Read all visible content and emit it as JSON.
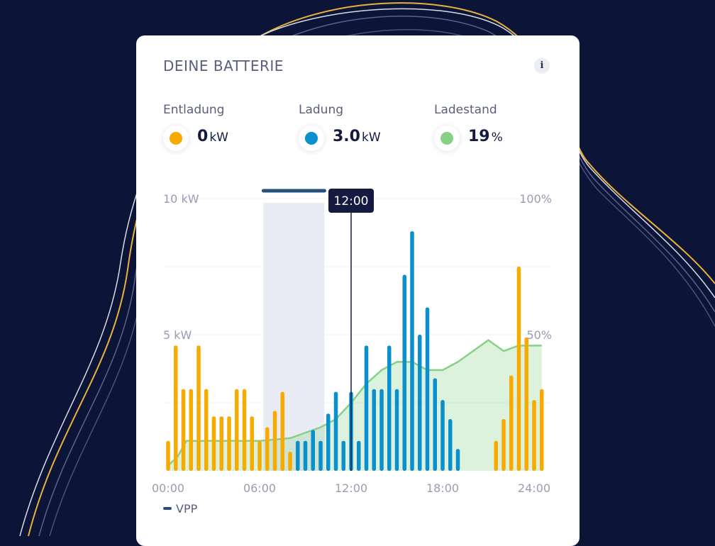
{
  "card": {
    "title": "DEINE BATTERIE",
    "info_icon": "i"
  },
  "stats": [
    {
      "label": "Entladung",
      "value": "0",
      "unit": "kW",
      "color": "#f7aa00"
    },
    {
      "label": "Ladung",
      "value": "3.0",
      "unit": "kW",
      "color": "#0a8fcf"
    },
    {
      "label": "Ladestand",
      "value": "19",
      "unit": "%",
      "color": "#86d186"
    }
  ],
  "legend": {
    "vpp_label": "VPP",
    "vpp_color": "#25517d"
  },
  "chart_data": {
    "type": "bar",
    "x_ticks": [
      "00:00",
      "06:00",
      "12:00",
      "18:00",
      "24:00"
    ],
    "y_left_ticks": [
      "10 kW",
      "5 kW"
    ],
    "y_right_ticks": [
      "100%",
      "50%"
    ],
    "ylim_left": [
      0,
      10
    ],
    "ylim_right": [
      0,
      100
    ],
    "cursor": {
      "label": "12:00",
      "hour": 12.0
    },
    "vpp_window": [
      6.25,
      10.25
    ],
    "colors": {
      "entladung": "#f7aa00",
      "ladung": "#0a8fcf",
      "ladestand": "#86d186"
    },
    "series": [
      {
        "name": "Entladung",
        "points": [
          [
            0.0,
            1.1
          ],
          [
            0.5,
            4.6
          ],
          [
            1.0,
            3.0
          ],
          [
            1.5,
            3.0
          ],
          [
            2.0,
            4.6
          ],
          [
            2.5,
            3.0
          ],
          [
            3.0,
            2.0
          ],
          [
            3.5,
            2.0
          ],
          [
            4.0,
            2.0
          ],
          [
            4.5,
            3.0
          ],
          [
            5.0,
            3.0
          ],
          [
            5.5,
            2.0
          ],
          [
            6.0,
            1.1
          ],
          [
            6.5,
            1.6
          ],
          [
            7.0,
            2.2
          ],
          [
            7.5,
            2.9
          ],
          [
            8.0,
            0.7
          ],
          [
            21.5,
            1.1
          ],
          [
            22.0,
            1.9
          ],
          [
            22.5,
            3.5
          ],
          [
            23.0,
            7.5
          ],
          [
            23.5,
            4.9
          ],
          [
            24.0,
            2.6
          ],
          [
            24.5,
            3.0
          ]
        ]
      },
      {
        "name": "Ladung",
        "points": [
          [
            8.5,
            1.1
          ],
          [
            9.0,
            1.1
          ],
          [
            9.5,
            1.5
          ],
          [
            10.0,
            1.1
          ],
          [
            10.5,
            2.1
          ],
          [
            11.0,
            2.9
          ],
          [
            11.5,
            1.1
          ],
          [
            12.0,
            2.9
          ],
          [
            12.5,
            1.1
          ],
          [
            13.0,
            4.6
          ],
          [
            13.5,
            3.0
          ],
          [
            14.0,
            3.0
          ],
          [
            14.5,
            4.6
          ],
          [
            15.0,
            3.0
          ],
          [
            15.5,
            7.2
          ],
          [
            16.0,
            8.8
          ],
          [
            16.5,
            5.0
          ],
          [
            17.0,
            6.0
          ],
          [
            17.5,
            3.4
          ],
          [
            18.0,
            2.6
          ],
          [
            18.5,
            1.9
          ],
          [
            19.0,
            0.8
          ]
        ]
      },
      {
        "name": "Ladestand",
        "points": [
          [
            0.0,
            2
          ],
          [
            0.6,
            5
          ],
          [
            1.2,
            11
          ],
          [
            2.0,
            11
          ],
          [
            4.0,
            11
          ],
          [
            6.0,
            11
          ],
          [
            8.0,
            12
          ],
          [
            9.0,
            14
          ],
          [
            10.0,
            16
          ],
          [
            11.0,
            19
          ],
          [
            12.0,
            25
          ],
          [
            13.0,
            32
          ],
          [
            14.0,
            37
          ],
          [
            15.0,
            40
          ],
          [
            16.0,
            40
          ],
          [
            17.0,
            37
          ],
          [
            18.0,
            37
          ],
          [
            19.0,
            40
          ],
          [
            20.0,
            44
          ],
          [
            21.0,
            48
          ],
          [
            21.5,
            46
          ],
          [
            22.0,
            44
          ],
          [
            23.0,
            46
          ],
          [
            24.0,
            46
          ],
          [
            24.5,
            46
          ]
        ]
      }
    ]
  }
}
